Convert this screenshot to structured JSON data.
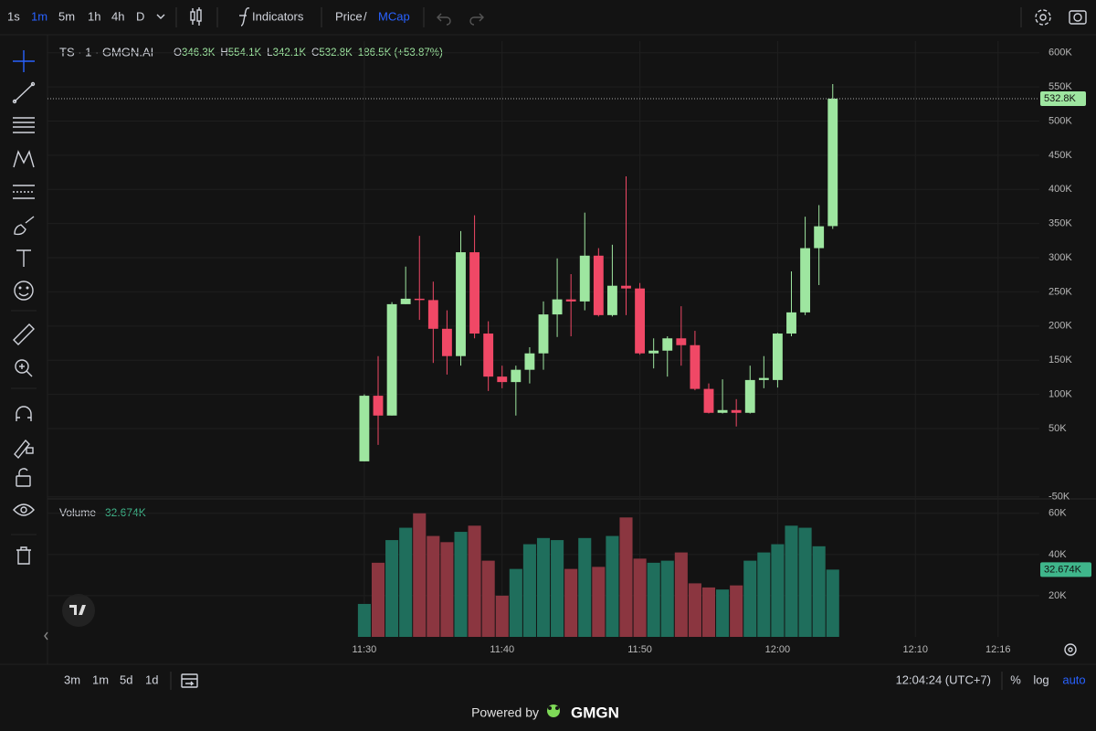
{
  "toolbar": {
    "intervals": [
      "1s",
      "1m",
      "5m",
      "1h",
      "4h",
      "D"
    ],
    "active_interval": 1,
    "indicators": "Indicators",
    "price": "Price",
    "separator": "/",
    "mcap": "MCap"
  },
  "header": {
    "symbol": "TS · 1 · GMGN.AI",
    "ohlc": [
      {
        "key": "O",
        "value": "346.3K"
      },
      {
        "key": "H",
        "value": "554.1K"
      },
      {
        "key": "L",
        "value": "342.1K"
      },
      {
        "key": "C",
        "value": "532.8K"
      }
    ],
    "change": "186.5K (+53.87%)",
    "volume_label": "Volume",
    "volume_value": "32.674K"
  },
  "chart_data": [
    {
      "type": "candlestick",
      "x": [
        "11:30",
        "11:31",
        "11:32",
        "11:33",
        "11:34",
        "11:35",
        "11:36",
        "11:37",
        "11:38",
        "11:39",
        "11:40",
        "11:41",
        "11:42",
        "11:43",
        "11:44",
        "11:45",
        "11:46",
        "11:47",
        "11:48",
        "11:49",
        "11:50",
        "11:51",
        "11:52",
        "11:53",
        "11:54",
        "11:55",
        "11:56",
        "11:57",
        "11:58",
        "11:59",
        "12:00",
        "12:01",
        "12:02",
        "12:03",
        "12:04"
      ],
      "open": [
        2,
        98,
        69,
        232,
        240,
        238,
        196,
        156,
        308,
        189,
        126,
        118,
        136,
        160,
        217,
        239,
        236,
        303,
        216,
        259,
        255,
        160,
        164,
        182,
        172,
        108,
        73,
        77,
        73,
        121,
        121,
        189,
        220,
        314,
        346.3
      ],
      "high": [
        100,
        156,
        235,
        287,
        332,
        265,
        223,
        339,
        362,
        207,
        142,
        142,
        169,
        236,
        299,
        276,
        366,
        314,
        319,
        419,
        263,
        182,
        185,
        229,
        193,
        116,
        122,
        93,
        142,
        156,
        190,
        280,
        360,
        377,
        554.1
      ],
      "low": [
        2,
        26,
        69,
        232,
        209,
        146,
        129,
        142,
        182,
        105,
        109,
        69,
        116,
        136,
        184,
        185,
        223,
        214,
        214,
        216,
        158,
        138,
        126,
        142,
        106,
        72,
        72,
        53,
        72,
        109,
        110,
        185,
        216,
        260,
        342.1
      ],
      "close": [
        98,
        69,
        232,
        240,
        238,
        196,
        156,
        308,
        189,
        126,
        118,
        136,
        160,
        217,
        239,
        236,
        303,
        216,
        259,
        255,
        160,
        164,
        182,
        172,
        108,
        73,
        77,
        73,
        121,
        124,
        189,
        220,
        314,
        346,
        532.8
      ],
      "up_color": "#9ee6a0",
      "down_color": "#f04866",
      "xlim": [
        "11:07",
        "12:19"
      ],
      "xticks": [
        "11:30",
        "11:40",
        "11:50",
        "12:00",
        "12:10",
        "12:16"
      ],
      "ylim": [
        -53,
        617
      ],
      "yticks": [
        {
          "value": 600,
          "label": "600K"
        },
        {
          "value": 550,
          "label": "550K"
        },
        {
          "value": 500,
          "label": "500K"
        },
        {
          "value": 450,
          "label": "450K"
        },
        {
          "value": 400,
          "label": "400K"
        },
        {
          "value": 350,
          "label": "350K"
        },
        {
          "value": 300,
          "label": "300K"
        },
        {
          "value": 250,
          "label": "250K"
        },
        {
          "value": 200,
          "label": "200K"
        },
        {
          "value": 150,
          "label": "150K"
        },
        {
          "value": 100,
          "label": "100K"
        },
        {
          "value": 50,
          "label": "50K"
        },
        {
          "value": -50,
          "label": "-50K"
        }
      ],
      "last_price": {
        "value": 532.8,
        "label": "532.8K"
      },
      "grid": true
    },
    {
      "type": "bar",
      "values": [
        16,
        36,
        47,
        53,
        60,
        49,
        46,
        51,
        54,
        37,
        20,
        33,
        45,
        48,
        47,
        33,
        48,
        34,
        49,
        58,
        38,
        36,
        37,
        41,
        26,
        24,
        23,
        25,
        37,
        41,
        45,
        54,
        53,
        44,
        32.674
      ],
      "up_color": "#1f6e5c",
      "down_color": "#8b3640",
      "ylim": [
        0,
        67
      ],
      "yticks": [
        {
          "value": 60,
          "label": "60K"
        },
        {
          "value": 40,
          "label": "40K"
        },
        {
          "value": 20,
          "label": "20K"
        }
      ],
      "last_value": {
        "value": 32.674,
        "label": "32.674K"
      },
      "grid": true
    }
  ],
  "footer": {
    "ranges": [
      "3m",
      "1m",
      "5d",
      "1d"
    ],
    "clock": "12:04:24 (UTC+7)",
    "percent": "%",
    "log": "log",
    "auto": "auto",
    "powered_by": "Powered by",
    "brand": "GMGN"
  }
}
